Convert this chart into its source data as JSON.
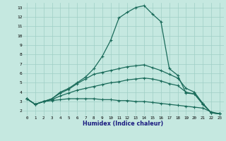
{
  "title": "",
  "xlabel": "Humidex (Indice chaleur)",
  "ylabel": "",
  "background_color": "#c5e8e0",
  "grid_color": "#9fcfc5",
  "line_color": "#1a6b5a",
  "xlim": [
    -0.5,
    23.5
  ],
  "ylim": [
    1.5,
    13.5
  ],
  "xticks": [
    0,
    1,
    2,
    3,
    4,
    5,
    6,
    7,
    8,
    9,
    10,
    11,
    12,
    13,
    14,
    15,
    16,
    17,
    18,
    19,
    20,
    21,
    22,
    23
  ],
  "yticks": [
    2,
    3,
    4,
    5,
    6,
    7,
    8,
    9,
    10,
    11,
    12,
    13
  ],
  "main_x": [
    0,
    1,
    2,
    3,
    4,
    5,
    6,
    7,
    8,
    9,
    10,
    11,
    12,
    13,
    14,
    15,
    16,
    17,
    18,
    19,
    20,
    21,
    22,
    23
  ],
  "main_y": [
    3.3,
    2.7,
    3.0,
    3.3,
    4.0,
    4.4,
    5.0,
    5.6,
    6.5,
    7.8,
    9.5,
    11.9,
    12.5,
    13.0,
    13.2,
    12.3,
    11.5,
    6.5,
    5.8,
    3.9,
    3.8,
    2.8,
    1.8,
    1.7
  ],
  "line2_x": [
    0,
    1,
    2,
    3,
    4,
    5,
    6,
    7,
    8,
    9,
    10,
    11,
    12,
    13,
    14,
    15,
    16,
    17,
    18,
    19,
    20,
    21,
    22,
    23
  ],
  "line2_y": [
    3.3,
    2.7,
    3.0,
    3.3,
    3.9,
    4.3,
    4.9,
    5.4,
    5.9,
    6.1,
    6.3,
    6.5,
    6.7,
    6.8,
    6.9,
    6.6,
    6.3,
    5.9,
    5.5,
    4.4,
    4.0,
    2.8,
    1.8,
    1.7
  ],
  "line3_x": [
    0,
    1,
    2,
    3,
    4,
    5,
    6,
    7,
    8,
    9,
    10,
    11,
    12,
    13,
    14,
    15,
    16,
    17,
    18,
    19,
    20,
    21,
    22,
    23
  ],
  "line3_y": [
    3.3,
    2.7,
    3.0,
    3.2,
    3.6,
    3.9,
    4.2,
    4.4,
    4.6,
    4.8,
    5.0,
    5.1,
    5.3,
    5.4,
    5.5,
    5.4,
    5.2,
    4.9,
    4.7,
    4.0,
    3.8,
    2.7,
    1.8,
    1.7
  ],
  "line4_x": [
    0,
    1,
    2,
    3,
    4,
    5,
    6,
    7,
    8,
    9,
    10,
    11,
    12,
    13,
    14,
    15,
    16,
    17,
    18,
    19,
    20,
    21,
    22,
    23
  ],
  "line4_y": [
    3.3,
    2.7,
    3.0,
    3.1,
    3.2,
    3.3,
    3.3,
    3.3,
    3.3,
    3.2,
    3.2,
    3.1,
    3.1,
    3.0,
    3.0,
    2.9,
    2.8,
    2.7,
    2.6,
    2.5,
    2.4,
    2.3,
    1.9,
    1.7
  ]
}
